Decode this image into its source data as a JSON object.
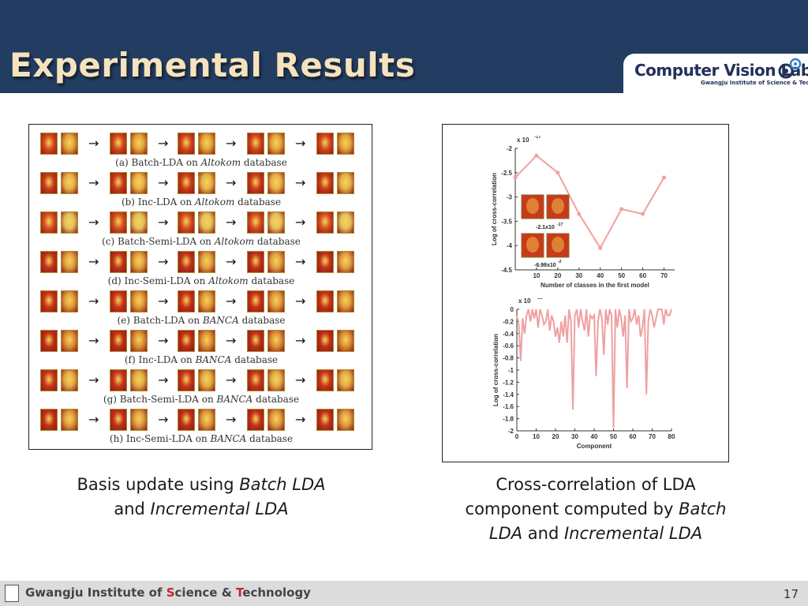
{
  "header": {
    "title": "Experimental Results",
    "logo": {
      "main_text": "Computer Vision Lab.",
      "sub_text": "Gwangju Institute of Science & Technology"
    }
  },
  "left_figure": {
    "rows": [
      {
        "caption_pre": "(a) Batch-LDA on ",
        "caption_em": "Altokom",
        "caption_post": " database",
        "face_hue": "#d2451c",
        "alt_hue": "#e3a33a"
      },
      {
        "caption_pre": "(b) Inc-LDA on ",
        "caption_em": "Altokom",
        "caption_post": " database",
        "face_hue": "#c93a1a",
        "alt_hue": "#e8b048"
      },
      {
        "caption_pre": "(c) Batch-Semi-LDA on ",
        "caption_em": "Altokom",
        "caption_post": " database",
        "face_hue": "#d54e1f",
        "alt_hue": "#e6c05a"
      },
      {
        "caption_pre": "(d) Inc-Semi-LDA on ",
        "caption_em": "Altokom",
        "caption_post": " database",
        "face_hue": "#c0331a",
        "alt_hue": "#e0a040"
      },
      {
        "caption_pre": "(e) Batch-LDA on ",
        "caption_em": "BANCA",
        "caption_post": " database",
        "face_hue": "#c93218",
        "alt_hue": "#e09a3a"
      },
      {
        "caption_pre": "(f) Inc-LDA on ",
        "caption_em": "BANCA",
        "caption_post": " database",
        "face_hue": "#be2e18",
        "alt_hue": "#dd8f36"
      },
      {
        "caption_pre": "(g) Batch-Semi-LDA on ",
        "caption_em": "BANCA",
        "caption_post": " database",
        "face_hue": "#c8361b",
        "alt_hue": "#e3aa44"
      },
      {
        "caption_pre": "(h) Inc-Semi-LDA on ",
        "caption_em": "BANCA",
        "caption_post": " database",
        "face_hue": "#c2301a",
        "alt_hue": "#de9a3e"
      }
    ],
    "caption_line1_pre": "Basis update using ",
    "caption_line1_em": "Batch LDA",
    "caption_line2_pre": "and ",
    "caption_line2_em": "Incremental LDA"
  },
  "right_figure": {
    "caption_line1": "Cross-correlation of LDA",
    "caption_line2_pre": "component computed by ",
    "caption_line2_em": "Batch",
    "caption_line3_em1": "LDA",
    "caption_line3_mid": " and ",
    "caption_line3_em2": "Incremental LDA"
  },
  "chart_data": [
    {
      "type": "line",
      "color": "#f0a0a0",
      "exponent_label": "x 10",
      "exponent_power": "-17",
      "x": [
        10,
        20,
        30,
        40,
        50,
        60,
        70
      ],
      "values": [
        -2.15,
        -2.5,
        -3.35,
        -4.05,
        -3.25,
        -3.35,
        -2.6
      ],
      "extra_points": [
        {
          "x": 0,
          "y": -2.6
        }
      ],
      "xlabel": "Number  of  classes  in  the  first  model",
      "ylabel": "Log  of  cross-correlation",
      "xlim": [
        0,
        75
      ],
      "ylim": [
        -4.5,
        -2
      ],
      "xticks": [
        "10",
        "20",
        "30",
        "40",
        "50",
        "60",
        "70"
      ],
      "yticks": [
        "-2",
        "-2.5",
        "-3",
        "-3.5",
        "-4",
        "-4.5"
      ],
      "inset_labels": [
        {
          "text": "-2.1x10",
          "power": "-17"
        },
        {
          "text": "-6.98x10",
          "power": "-2"
        }
      ]
    },
    {
      "type": "line",
      "color": "#f0a0a0",
      "exponent_label": "x 10",
      "exponent_power": "-16",
      "x": [
        0,
        1,
        2,
        3,
        4,
        5,
        6,
        7,
        8,
        9,
        10,
        11,
        12,
        13,
        14,
        15,
        16,
        17,
        18,
        19,
        20,
        21,
        22,
        23,
        24,
        25,
        26,
        27,
        28,
        29,
        30,
        31,
        32,
        33,
        34,
        35,
        36,
        37,
        38,
        39,
        40,
        41,
        42,
        43,
        44,
        45,
        46,
        47,
        48,
        49,
        50,
        51,
        52,
        53,
        54,
        55,
        56,
        57,
        58,
        59,
        60,
        61,
        62,
        63,
        64,
        65,
        66,
        67,
        68,
        69,
        70,
        71,
        72,
        73,
        74,
        75,
        76,
        77,
        78,
        79,
        80
      ],
      "values": [
        -0.1,
        -0.25,
        -0.85,
        -0.15,
        -0.4,
        -0.1,
        0,
        -0.2,
        0,
        -0.15,
        0,
        -0.3,
        0,
        -0.1,
        -0.25,
        -0.2,
        0,
        -0.35,
        -0.1,
        -0.2,
        -0.45,
        -0.3,
        -0.55,
        -0.2,
        -0.45,
        -0.1,
        -0.55,
        0,
        -0.2,
        -1.65,
        -0.1,
        0,
        -0.3,
        0,
        -0.2,
        -0.35,
        0,
        -0.45,
        -0.1,
        -0.15,
        -0.1,
        -1.1,
        -0.2,
        0,
        -0.15,
        -0.75,
        0,
        -0.25,
        0,
        -0.1,
        -1.95,
        0,
        -0.3,
        0,
        -0.15,
        -0.45,
        -0.1,
        -1.3,
        0,
        -0.2,
        -0.15,
        0,
        -0.25,
        -0.1,
        -0.45,
        -0.3,
        0,
        -1.4,
        -0.2,
        0,
        -0.1,
        -0.3,
        -0.15,
        0,
        0,
        0,
        -0.25,
        0,
        -0.1,
        -0.1,
        0
      ],
      "xlabel": "Component",
      "ylabel": "Log  of  cross-correlation",
      "xlim": [
        0,
        80
      ],
      "ylim": [
        -2,
        0
      ],
      "xticks": [
        "0",
        "10",
        "20",
        "30",
        "40",
        "50",
        "60",
        "70",
        "80"
      ],
      "yticks": [
        "0",
        "-0.2",
        "-0.4",
        "-0.6",
        "-0.8",
        "-1",
        "-1.2",
        "-1.4",
        "-1.6",
        "-1.8",
        "-2"
      ]
    }
  ],
  "footer": {
    "institute_pre": "Gwangju Institute of ",
    "institute_s": "S",
    "institute_mid": "cience & ",
    "institute_t": "T",
    "institute_post": "echnology",
    "page_number": "17"
  }
}
